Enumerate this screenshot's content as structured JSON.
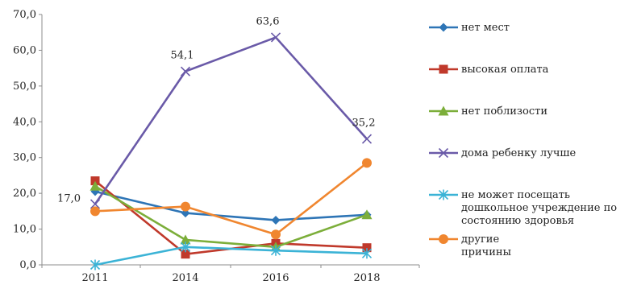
{
  "chart_data": {
    "type": "line",
    "title": "",
    "xlabel": "",
    "ylabel": "",
    "categories": [
      "2011",
      "2014",
      "2016",
      "2018"
    ],
    "y_ticks": [
      "0,0",
      "10,0",
      "20,0",
      "30,0",
      "40,0",
      "50,0",
      "60,0",
      "70,0"
    ],
    "ylim": [
      0,
      70
    ],
    "grid": false,
    "legend_position": "right",
    "series": [
      {
        "name": "нет мест",
        "color": "#2e75b6",
        "marker": "diamond",
        "values": [
          20.5,
          14.5,
          12.5,
          14.0
        ]
      },
      {
        "name": "высокая оплата",
        "color": "#c0392b",
        "marker": "square",
        "values": [
          23.5,
          3.0,
          6.0,
          4.8
        ]
      },
      {
        "name": "нет поблизости",
        "color": "#7cae3a",
        "marker": "triangle",
        "values": [
          22.0,
          7.0,
          5.0,
          14.0
        ]
      },
      {
        "name": "дома ребенку лучше",
        "color": "#6a5aa8",
        "marker": "x",
        "values": [
          17.0,
          54.1,
          63.6,
          35.2
        ]
      },
      {
        "name": "не может посещать\nдошкольное учреждение по\nсостоянию здоровья",
        "color": "#3bb3d6",
        "marker": "star",
        "values": [
          0.0,
          5.0,
          4.0,
          3.2
        ]
      },
      {
        "name": "другие\n причины",
        "color": "#f0862f",
        "marker": "circle",
        "values": [
          15.0,
          16.3,
          8.5,
          28.5
        ]
      }
    ],
    "data_labels": [
      {
        "series": 3,
        "index": 0,
        "text": "17,0"
      },
      {
        "series": 3,
        "index": 1,
        "text": "54,1"
      },
      {
        "series": 3,
        "index": 2,
        "text": "63,6"
      },
      {
        "series": 3,
        "index": 3,
        "text": "35,2"
      }
    ]
  }
}
